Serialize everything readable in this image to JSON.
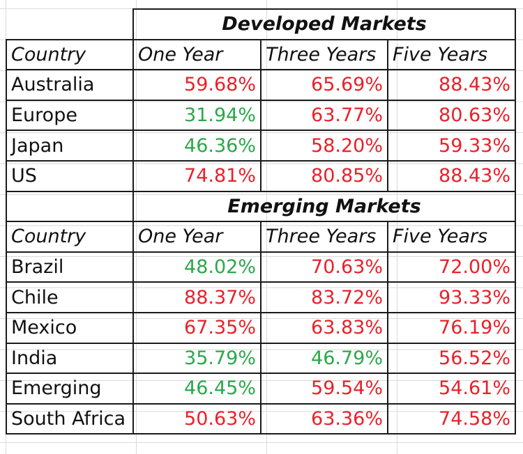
{
  "colors": {
    "above_threshold": "#e8212a",
    "below_threshold": "#2aa84a",
    "border": "#1a1a1a",
    "gridline": "#dadada"
  },
  "sections": [
    {
      "title": "Developed Markets",
      "headers": [
        "Country",
        "One Year",
        "Three Years",
        "Five Years"
      ],
      "rows": [
        {
          "country": "Australia",
          "values": [
            "59.68%",
            "65.69%",
            "88.43%"
          ],
          "colors": [
            "red",
            "red",
            "red"
          ]
        },
        {
          "country": "Europe",
          "values": [
            "31.94%",
            "63.77%",
            "80.63%"
          ],
          "colors": [
            "green",
            "red",
            "red"
          ]
        },
        {
          "country": "Japan",
          "values": [
            "46.36%",
            "58.20%",
            "59.33%"
          ],
          "colors": [
            "green",
            "red",
            "red"
          ]
        },
        {
          "country": "US",
          "values": [
            "74.81%",
            "80.85%",
            "88.43%"
          ],
          "colors": [
            "red",
            "red",
            "red"
          ]
        }
      ]
    },
    {
      "title": "Emerging Markets",
      "headers": [
        "Country",
        "One Year",
        "Three Years",
        "Five Years"
      ],
      "rows": [
        {
          "country": "Brazil",
          "values": [
            "48.02%",
            "70.63%",
            "72.00%"
          ],
          "colors": [
            "green",
            "red",
            "red"
          ]
        },
        {
          "country": "Chile",
          "values": [
            "88.37%",
            "83.72%",
            "93.33%"
          ],
          "colors": [
            "red",
            "red",
            "red"
          ]
        },
        {
          "country": "Mexico",
          "values": [
            "67.35%",
            "63.83%",
            "76.19%"
          ],
          "colors": [
            "red",
            "red",
            "red"
          ]
        },
        {
          "country": "India",
          "values": [
            "35.79%",
            "46.79%",
            "56.52%"
          ],
          "colors": [
            "green",
            "green",
            "red"
          ]
        },
        {
          "country": "Emerging",
          "values": [
            "46.45%",
            "59.54%",
            "54.61%"
          ],
          "colors": [
            "green",
            "red",
            "red"
          ]
        },
        {
          "country": "South Africa",
          "values": [
            "50.63%",
            "63.36%",
            "74.58%"
          ],
          "colors": [
            "red",
            "red",
            "red"
          ]
        }
      ]
    }
  ]
}
